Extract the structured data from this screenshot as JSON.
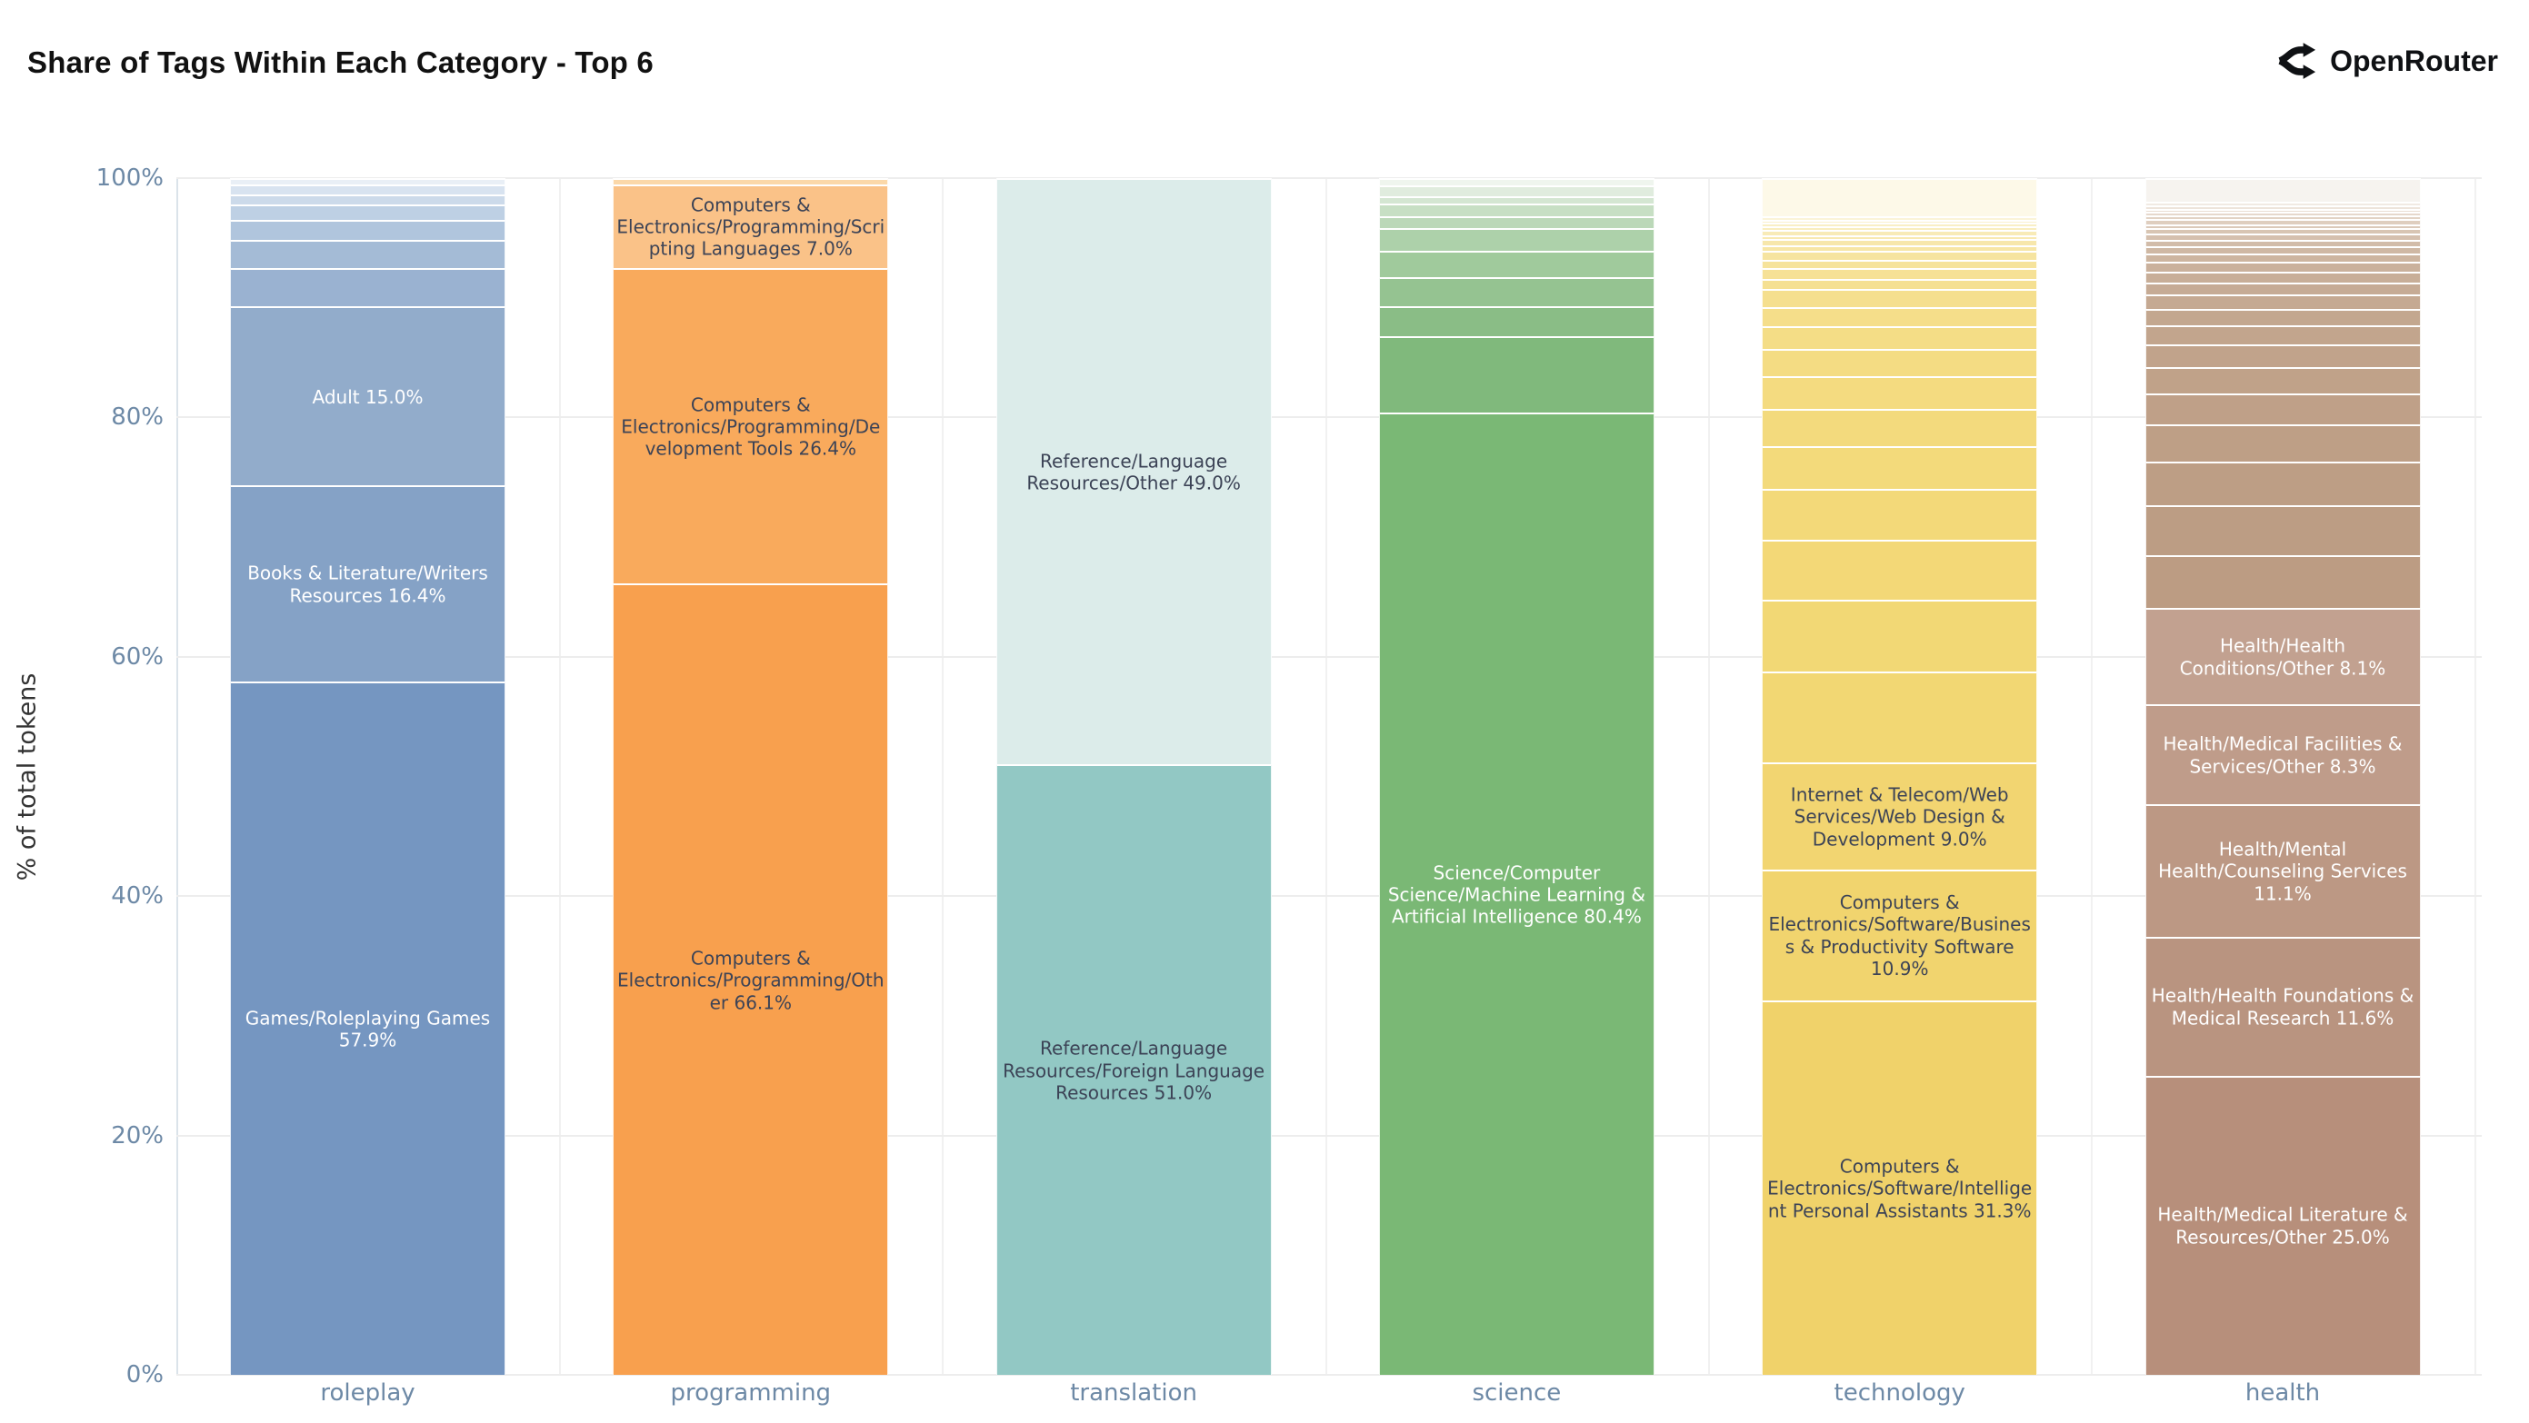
{
  "header": {
    "title": "Share of Tags Within Each Category - Top 6",
    "brand": {
      "name": "OpenRouter",
      "icon": "route-fork-icon"
    }
  },
  "axes": {
    "y_title": "% of total tokens",
    "y_ticks": [
      {
        "label": "0%",
        "value": 0
      },
      {
        "label": "20%",
        "value": 20
      },
      {
        "label": "40%",
        "value": 40
      },
      {
        "label": "60%",
        "value": 60
      },
      {
        "label": "80%",
        "value": 80
      },
      {
        "label": "100%",
        "value": 100
      }
    ]
  },
  "colors": {
    "background": "#ffffff",
    "grid": "#ededed",
    "axis_line": "#dbe3ea",
    "tick_label": "#6d89a6",
    "title": "#111111",
    "segment_dark_text": "#3c4356",
    "segment_light_text": "#ffffff"
  },
  "chart_data": {
    "type": "bar",
    "stacked": true,
    "orientation": "vertical",
    "title": "Share of Tags Within Each Category - Top 6",
    "ylabel": "% of total tokens",
    "ylim": [
      0,
      100
    ],
    "grid": true,
    "legend": "none",
    "note": "segments listed top-to-bottom per bar; unlabeled segments are small unannotated tag shares",
    "categories": [
      "roleplay",
      "programming",
      "translation",
      "science",
      "technology",
      "health"
    ],
    "bars": [
      {
        "category": "roleplay",
        "segments": [
          {
            "label": "",
            "value": 0.5,
            "color": "#e9eff6"
          },
          {
            "label": "",
            "value": 0.9,
            "color": "#d8e3f0"
          },
          {
            "label": "",
            "value": 0.8,
            "color": "#ccdaea"
          },
          {
            "label": "",
            "value": 1.3,
            "color": "#bed0e4"
          },
          {
            "label": "",
            "value": 1.7,
            "color": "#b0c5dd"
          },
          {
            "label": "",
            "value": 2.3,
            "color": "#a4bbd6"
          },
          {
            "label": "",
            "value": 3.2,
            "color": "#9ab2d1"
          },
          {
            "label": "Adult 15.0%",
            "value": 15.0,
            "color": "#92accb",
            "text": "light"
          },
          {
            "label": "Books & Literature/Writers Resources 16.4%",
            "value": 16.4,
            "color": "#85a2c6",
            "text": "light"
          },
          {
            "label": "Games/Roleplaying Games 57.9%",
            "value": 57.9,
            "color": "#7596c1",
            "text": "light"
          }
        ]
      },
      {
        "category": "programming",
        "segments": [
          {
            "label": "",
            "value": 0.5,
            "color": "#fbd8a9"
          },
          {
            "label": "Computers & Electronics/Programming/Scripting Languages 7.0%",
            "value": 7.0,
            "color": "#fac288",
            "text": "dark"
          },
          {
            "label": "Computers & Electronics/Programming/Development Tools 26.4%",
            "value": 26.4,
            "color": "#f9aa5c",
            "text": "dark"
          },
          {
            "label": "Computers & Electronics/Programming/Other 66.1%",
            "value": 66.1,
            "color": "#f8a04e",
            "text": "dark"
          }
        ]
      },
      {
        "category": "translation",
        "segments": [
          {
            "label": "Reference/Language Resources/Other 49.0%",
            "value": 49.0,
            "color": "#dcecea",
            "text": "dark"
          },
          {
            "label": "Reference/Language Resources/Foreign Language Resources 51.0%",
            "value": 51.0,
            "color": "#92c8c4",
            "text": "dark"
          }
        ]
      },
      {
        "category": "science",
        "segments": [
          {
            "label": "",
            "value": 0.6,
            "color": "#eff5ee"
          },
          {
            "label": "",
            "value": 0.9,
            "color": "#e0ecde"
          },
          {
            "label": "",
            "value": 0.6,
            "color": "#d4e6d2"
          },
          {
            "label": "",
            "value": 1.1,
            "color": "#c7dfc4"
          },
          {
            "label": "",
            "value": 1.0,
            "color": "#bbd8b8"
          },
          {
            "label": "",
            "value": 1.9,
            "color": "#add1aa"
          },
          {
            "label": "",
            "value": 2.2,
            "color": "#a0ca9c"
          },
          {
            "label": "",
            "value": 2.4,
            "color": "#95c391"
          },
          {
            "label": "",
            "value": 2.5,
            "color": "#8abd86"
          },
          {
            "label": "",
            "value": 6.4,
            "color": "#80b97c"
          },
          {
            "label": "Science/Computer Science/Machine Learning & Artificial Intelligence 80.4%",
            "value": 80.4,
            "color": "#7ab875",
            "text": "light"
          }
        ]
      },
      {
        "category": "technology",
        "segments": [
          {
            "label": "",
            "value": 3.2,
            "color": "#fdf9e8"
          },
          {
            "label": "",
            "value": 0.3,
            "color": "#fbf4d8"
          },
          {
            "label": "",
            "value": 0.25,
            "color": "#faf1cd"
          },
          {
            "label": "",
            "value": 0.3,
            "color": "#f9efc5"
          },
          {
            "label": "",
            "value": 0.3,
            "color": "#f9edbe"
          },
          {
            "label": "",
            "value": 0.4,
            "color": "#f8ebb7"
          },
          {
            "label": "",
            "value": 0.35,
            "color": "#f8e9b1"
          },
          {
            "label": "",
            "value": 0.55,
            "color": "#f7e7ab"
          },
          {
            "label": "",
            "value": 0.4,
            "color": "#f7e6a5"
          },
          {
            "label": "",
            "value": 0.75,
            "color": "#f6e4a0"
          },
          {
            "label": "",
            "value": 0.75,
            "color": "#f6e39b"
          },
          {
            "label": "",
            "value": 0.85,
            "color": "#f6e196"
          },
          {
            "label": "",
            "value": 0.9,
            "color": "#f5e092"
          },
          {
            "label": "",
            "value": 1.5,
            "color": "#f5df8e"
          },
          {
            "label": "",
            "value": 1.6,
            "color": "#f5de8a"
          },
          {
            "label": "",
            "value": 1.9,
            "color": "#f4dd86"
          },
          {
            "label": "",
            "value": 2.25,
            "color": "#f4dc83"
          },
          {
            "label": "",
            "value": 2.75,
            "color": "#f4db80"
          },
          {
            "label": "",
            "value": 3.1,
            "color": "#f3da7d"
          },
          {
            "label": "",
            "value": 3.6,
            "color": "#f3da7b"
          },
          {
            "label": "",
            "value": 4.25,
            "color": "#f3d979"
          },
          {
            "label": "",
            "value": 5.0,
            "color": "#f3d877"
          },
          {
            "label": "",
            "value": 6.0,
            "color": "#f2d875"
          },
          {
            "label": "",
            "value": 7.55,
            "color": "#f2d773"
          },
          {
            "label": "Internet & Telecom/Web Services/Web Design & Development 9.0%",
            "value": 9.0,
            "color": "#f2d571",
            "text": "dark"
          },
          {
            "label": "Computers & Electronics/Software/Business & Productivity Software 10.9%",
            "value": 10.9,
            "color": "#f1d46e",
            "text": "dark"
          },
          {
            "label": "Computers & Electronics/Software/Intelligent Personal Assistants 31.3%",
            "value": 31.3,
            "color": "#f0d26a",
            "text": "dark"
          }
        ]
      },
      {
        "category": "health",
        "segments": [
          {
            "label": "",
            "value": 2.0,
            "color": "#f6f3ef"
          },
          {
            "label": "",
            "value": 0.25,
            "color": "#f1eae3"
          },
          {
            "label": "",
            "value": 0.3,
            "color": "#ede4db"
          },
          {
            "label": "",
            "value": 0.25,
            "color": "#e9ded3"
          },
          {
            "label": "",
            "value": 0.35,
            "color": "#e6d8cc"
          },
          {
            "label": "",
            "value": 0.3,
            "color": "#e2d3c5"
          },
          {
            "label": "",
            "value": 0.4,
            "color": "#dfcebf"
          },
          {
            "label": "",
            "value": 0.35,
            "color": "#dbc9b9"
          },
          {
            "label": "",
            "value": 0.45,
            "color": "#d8c5b3"
          },
          {
            "label": "",
            "value": 0.5,
            "color": "#d5c0ae"
          },
          {
            "label": "",
            "value": 0.55,
            "color": "#d2bca9"
          },
          {
            "label": "",
            "value": 0.6,
            "color": "#cfb8a4"
          },
          {
            "label": "",
            "value": 0.7,
            "color": "#cdb5a0"
          },
          {
            "label": "",
            "value": 0.8,
            "color": "#cab19c"
          },
          {
            "label": "",
            "value": 0.9,
            "color": "#c8ae98"
          },
          {
            "label": "",
            "value": 1.0,
            "color": "#c6ab95"
          },
          {
            "label": "",
            "value": 1.2,
            "color": "#c5a992"
          },
          {
            "label": "",
            "value": 1.4,
            "color": "#c3a78f"
          },
          {
            "label": "",
            "value": 1.6,
            "color": "#c2a58d"
          },
          {
            "label": "",
            "value": 1.9,
            "color": "#c1a38b"
          },
          {
            "label": "",
            "value": 2.2,
            "color": "#c0a289"
          },
          {
            "label": "",
            "value": 2.6,
            "color": "#bfa088"
          },
          {
            "label": "",
            "value": 3.1,
            "color": "#be9f86"
          },
          {
            "label": "",
            "value": 3.6,
            "color": "#bd9e85"
          },
          {
            "label": "",
            "value": 4.2,
            "color": "#bc9d84"
          },
          {
            "label": "",
            "value": 4.4,
            "color": "#bc9c83"
          },
          {
            "label": "Health/Health Conditions/Other 8.1%",
            "value": 8.1,
            "color": "#c2a190",
            "text": "light"
          },
          {
            "label": "Health/Medical Facilities & Services/Other 8.3%",
            "value": 8.3,
            "color": "#bf9c8a",
            "text": "light"
          },
          {
            "label": "Health/Mental Health/Counseling Services 11.1%",
            "value": 11.1,
            "color": "#bc9884",
            "text": "light"
          },
          {
            "label": "Health/Health Foundations & Medical Research 11.6%",
            "value": 11.6,
            "color": "#b99480",
            "text": "light"
          },
          {
            "label": "Health/Medical Literature & Resources/Other 25.0%",
            "value": 25.0,
            "color": "#b78f7b",
            "text": "light"
          }
        ]
      }
    ]
  }
}
